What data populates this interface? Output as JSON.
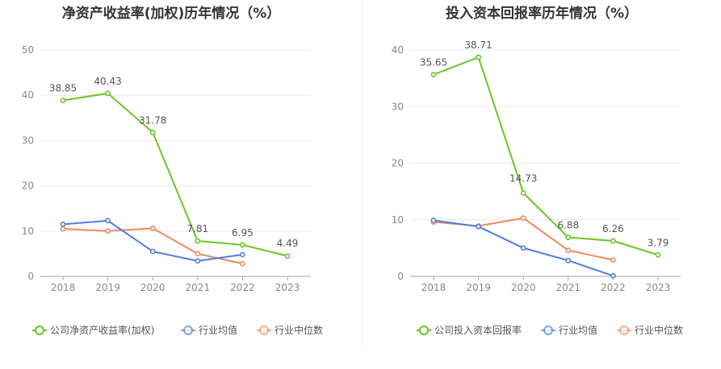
{
  "chart_data": [
    {
      "type": "line",
      "title": "净资产收益率(加权)历年情况（%）",
      "categories": [
        "2018",
        "2019",
        "2020",
        "2021",
        "2022",
        "2023"
      ],
      "ylim": [
        0,
        50
      ],
      "yticks": [
        "0",
        "10",
        "20",
        "30",
        "40",
        "50"
      ],
      "series": [
        {
          "name": "公司净资产收益率(加权)",
          "color": "#6ac62a",
          "values": [
            38.85,
            40.43,
            31.78,
            7.81,
            6.95,
            4.49
          ],
          "labels": [
            "38.85",
            "40.43",
            "31.78",
            "7.81",
            "6.95",
            "4.49"
          ]
        },
        {
          "name": "行业均值",
          "color": "#4f7fe0",
          "values": [
            11.5,
            12.3,
            5.5,
            3.4,
            4.8,
            null
          ]
        },
        {
          "name": "行业中位数",
          "color": "#f0895e",
          "values": [
            10.5,
            10.0,
            10.6,
            5.0,
            2.8,
            null
          ]
        }
      ]
    },
    {
      "type": "line",
      "title": "投入资本回报率历年情况（%）",
      "categories": [
        "2018",
        "2019",
        "2020",
        "2021",
        "2022",
        "2023"
      ],
      "ylim": [
        0,
        40
      ],
      "yticks": [
        "0",
        "10",
        "20",
        "30",
        "40"
      ],
      "series": [
        {
          "name": "公司投入资本回报率",
          "color": "#6ac62a",
          "values": [
            35.65,
            38.71,
            14.73,
            6.88,
            6.26,
            3.79
          ],
          "labels": [
            "35.65",
            "38.71",
            "14.73",
            "6.88",
            "6.26",
            "3.79"
          ]
        },
        {
          "name": "行业均值",
          "color": "#4f7fe0",
          "values": [
            9.9,
            8.8,
            5.0,
            2.8,
            0.1,
            null
          ]
        },
        {
          "name": "行业中位数",
          "color": "#f0895e",
          "values": [
            9.6,
            8.9,
            10.3,
            4.6,
            2.9,
            null
          ]
        }
      ]
    }
  ]
}
